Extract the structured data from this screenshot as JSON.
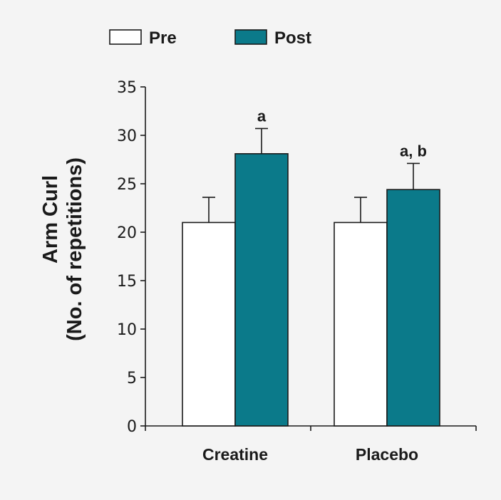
{
  "chart_data": {
    "type": "bar",
    "categories": [
      "Creatine",
      "Placebo"
    ],
    "series": [
      {
        "name": "Pre",
        "values": [
          21,
          21
        ],
        "errors": [
          2.6,
          2.6
        ],
        "color": "#ffffff"
      },
      {
        "name": "Post",
        "values": [
          28.1,
          24.4
        ],
        "errors": [
          2.6,
          2.7
        ],
        "color": "#0b7a8a"
      }
    ],
    "annotations": [
      {
        "category": "Creatine",
        "series": "Post",
        "text": "a"
      },
      {
        "category": "Placebo",
        "series": "Post",
        "text": "a, b"
      }
    ],
    "ylabel_line1": "Arm Curl",
    "ylabel_line2": "(No. of repetitions)",
    "ylim": [
      0,
      35
    ],
    "yticks": [
      0,
      5,
      10,
      15,
      20,
      25,
      30,
      35
    ],
    "legend_position": "top-left",
    "grid": false
  }
}
